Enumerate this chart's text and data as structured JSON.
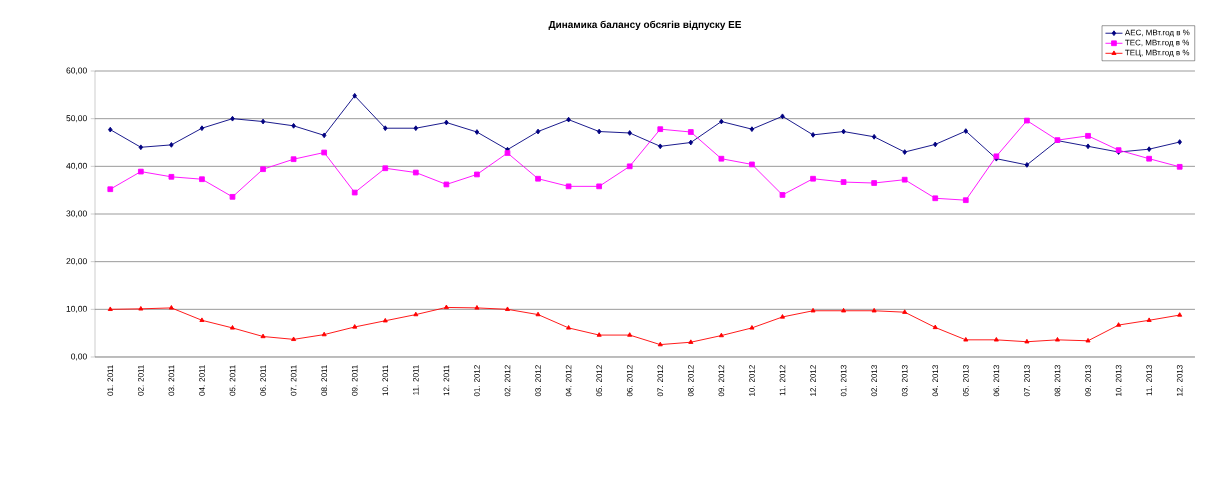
{
  "chart_data": {
    "type": "line",
    "title": "Динамика балансу обсягів відпуску ЕЕ",
    "categories": [
      "01. 2011",
      "02. 2011",
      "03. 2011",
      "04. 2011",
      "05. 2011",
      "06. 2011",
      "07. 2011",
      "08. 2011",
      "09. 2011",
      "10. 2011",
      "11. 2011",
      "12. 2011",
      "01. 2012",
      "02. 2012",
      "03. 2012",
      "04. 2012",
      "05. 2012",
      "06. 2012",
      "07. 2012",
      "08. 2012",
      "09. 2012",
      "10. 2012",
      "11. 2012",
      "12. 2012",
      "01. 2013",
      "02. 2013",
      "03. 2013",
      "04. 2013",
      "05. 2013",
      "06. 2013",
      "07. 2013",
      "08. 2013",
      "09. 2013",
      "10. 2013",
      "11. 2013",
      "12. 2013"
    ],
    "series": [
      {
        "name": "АЕС, МВт.год в %",
        "color": "#000080",
        "marker": "diamond",
        "values": [
          47.7,
          44,
          44.5,
          48,
          50,
          49.4,
          48.5,
          46.5,
          54.8,
          48,
          48,
          49.2,
          47.2,
          43.5,
          47.3,
          49.8,
          47.3,
          47,
          44.2,
          45,
          49.4,
          47.8,
          50.5,
          46.6,
          47.3,
          46.2,
          43,
          44.6,
          47.4,
          41.6,
          40.3,
          45.4,
          44.2,
          43,
          43.6,
          45.1
        ]
      },
      {
        "name": "ТЕС, МВт.год в %",
        "color": "#ff00ff",
        "marker": "square",
        "values": [
          35.2,
          38.9,
          37.8,
          37.3,
          33.6,
          39.4,
          41.5,
          42.9,
          34.5,
          39.6,
          38.7,
          36.2,
          38.3,
          42.8,
          37.4,
          35.8,
          35.8,
          40,
          47.8,
          47.2,
          41.6,
          40.4,
          34,
          37.4,
          36.7,
          36.5,
          37.2,
          33.3,
          32.9,
          42.1,
          49.6,
          45.5,
          46.4,
          43.4,
          41.6,
          39.9
        ]
      },
      {
        "name": "ТЕЦ, МВт.год в %",
        "color": "#ff0000",
        "marker": "triangle",
        "values": [
          10,
          10.1,
          10.3,
          7.7,
          6.1,
          4.3,
          3.7,
          4.7,
          6.3,
          7.6,
          8.9,
          10.4,
          10.3,
          10,
          8.9,
          6.1,
          4.6,
          4.6,
          2.6,
          3.1,
          4.5,
          6.1,
          8.4,
          9.7,
          9.7,
          9.7,
          9.4,
          6.2,
          3.6,
          3.6,
          3.2,
          3.6,
          3.4,
          6.7,
          7.7,
          8.8
        ]
      }
    ],
    "ylim": [
      0,
      60
    ],
    "yticks": [
      {
        "value": 0,
        "label": "0,00"
      },
      {
        "value": 10,
        "label": "10,00"
      },
      {
        "value": 20,
        "label": "20,00"
      },
      {
        "value": 30,
        "label": "30,00"
      },
      {
        "value": 40,
        "label": "40,00"
      },
      {
        "value": 50,
        "label": "50,00"
      },
      {
        "value": 60,
        "label": "60,00"
      }
    ],
    "grid": "y",
    "legend": "top right",
    "line_style": "solid"
  }
}
